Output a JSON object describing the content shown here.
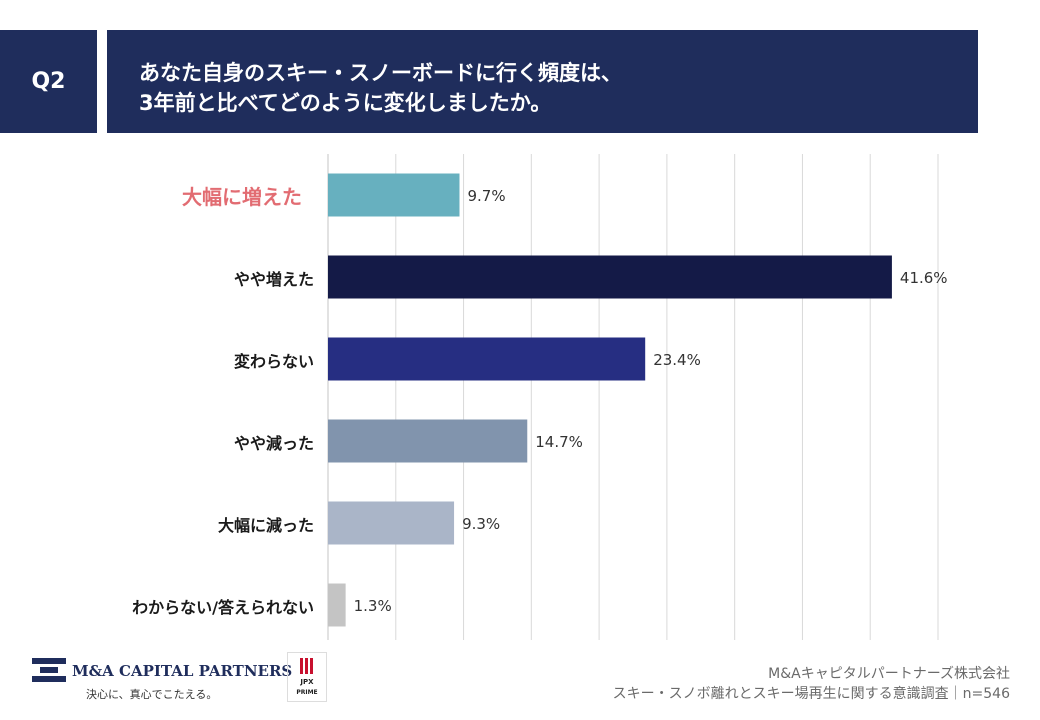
{
  "header": {
    "question_no": "Q2",
    "question_line1": "あなた自身のスキー・スノーボードに行く頻度は、",
    "question_line2": "3年前と比べてどのように変化しましたか。"
  },
  "chart_data": {
    "type": "bar",
    "orientation": "horizontal",
    "categories": [
      "大幅に増えた",
      "やや増えた",
      "変わらない",
      "やや減った",
      "大幅に減った",
      "わからない/答えられない"
    ],
    "values": [
      9.7,
      41.6,
      23.4,
      14.7,
      9.3,
      1.3
    ],
    "value_labels": [
      "9.7%",
      "41.6%",
      "23.4%",
      "14.7%",
      "9.3%",
      "1.3%"
    ],
    "colors": [
      "#67b0bf",
      "#141a47",
      "#262e82",
      "#8194ad",
      "#aab5c8",
      "#c4c4c4"
    ],
    "highlight_category_color": "#e26c72",
    "xlim": [
      0,
      45
    ],
    "grid": true,
    "unit": "%"
  },
  "footer": {
    "company": "M&Aキャピタルパートナーズ株式会社",
    "survey": "スキー・スノボ離れとスキー場再生に関する意識調査｜n=546",
    "logo_name": "M&A CAPITAL PARTNERS",
    "logo_tagline": "決心に、真心でこたえる。",
    "jpx_text": "JPX",
    "jpx_sub": "PRIME"
  }
}
